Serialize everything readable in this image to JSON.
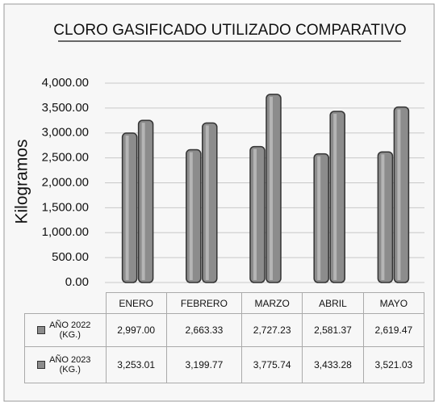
{
  "chart_data": {
    "type": "bar",
    "title": "CLORO GASIFICADO UTILIZADO COMPARATIVO",
    "y_label": "Kilogramos",
    "categories": [
      "ENERO",
      "FEBRERO",
      "MARZO",
      "ABRIL",
      "MAYO"
    ],
    "series": [
      {
        "name": "AÑO 2022 (KG.)",
        "color": "#8c8c8c",
        "values": [
          2997.0,
          2663.33,
          2727.23,
          2581.37,
          2619.47
        ],
        "value_labels": [
          "2,997.00",
          "2,663.33",
          "2,727.23",
          "2,581.37",
          "2,619.47"
        ]
      },
      {
        "name": "AÑO 2023 (KG.)",
        "color": "#8c8c8c",
        "values": [
          3253.01,
          3199.77,
          3775.74,
          3433.28,
          3521.03
        ],
        "value_labels": [
          "3,253.01",
          "3,199.77",
          "3,775.74",
          "3,433.28",
          "3,521.03"
        ]
      }
    ],
    "ylim": [
      0,
      4000
    ],
    "yticks": [
      {
        "value": 0,
        "label": "0.00"
      },
      {
        "value": 500,
        "label": "500.00"
      },
      {
        "value": 1000,
        "label": "1,000.00"
      },
      {
        "value": 1500,
        "label": "1,500.00"
      },
      {
        "value": 2000,
        "label": "2,000.00"
      },
      {
        "value": 2500,
        "label": "2,500.00"
      },
      {
        "value": 3000,
        "label": "3,000.00"
      },
      {
        "value": 3500,
        "label": "3,500.00"
      },
      {
        "value": 4000,
        "label": "4,000.00"
      }
    ],
    "grid": true
  }
}
